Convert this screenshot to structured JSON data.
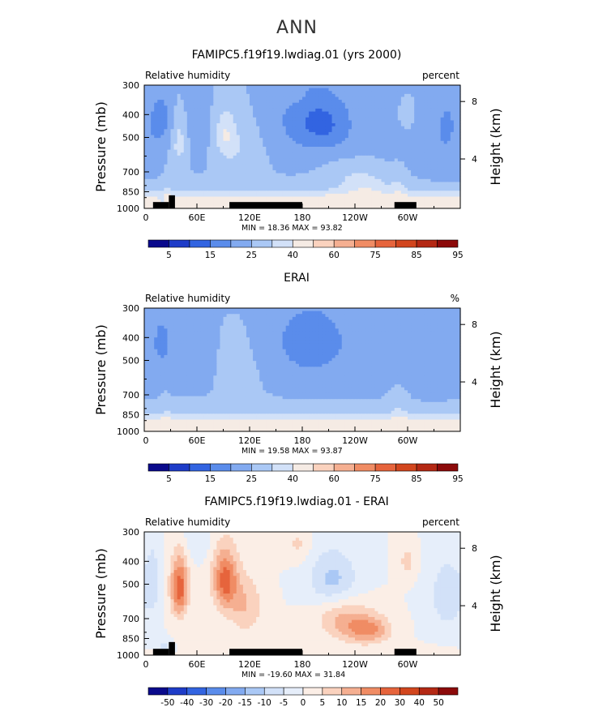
{
  "figure": {
    "title": "ANN",
    "longitude_ticks": [
      "0",
      "60E",
      "120E",
      "180",
      "120W",
      "60W"
    ],
    "pressure_ticks": [
      300,
      400,
      500,
      700,
      850,
      1000
    ],
    "pressure_axis_label": "Pressure (mb)",
    "height_ticks": [
      8,
      4
    ],
    "height_axis_label": "Height (km)"
  },
  "chart_data": [
    {
      "type": "heatmap",
      "title": "FAMIPC5.f19f19.lwdiag.01 (yrs 2000)",
      "left_label": "Relative humidity",
      "unit_label": "percent",
      "xlabel": "",
      "ylabel": "Pressure (mb)",
      "y2label": "Height (km)",
      "x_range": [
        0,
        360
      ],
      "ylim": [
        1000,
        300
      ],
      "min_label": "MIN =",
      "min_value": "18.36",
      "max_label": "MAX =",
      "max_value": "93.82",
      "colorbar_labels": [
        "5",
        "15",
        "25",
        "40",
        "60",
        "75",
        "85",
        "95"
      ],
      "colorbar_colors": [
        "#0a0a8c",
        "#1e3cc8",
        "#3264e1",
        "#5a8ceb",
        "#82aaf0",
        "#aac8f5",
        "#d2e1f8",
        "#f5ebe4",
        "#fad2be",
        "#f5af91",
        "#f08c64",
        "#e6643c",
        "#d2461e",
        "#b42814",
        "#8c0a0a"
      ],
      "field": "model_rh",
      "land": [
        {
          "lon": [
            10,
            28
          ],
          "p": [
            940,
            1000
          ]
        },
        {
          "lon": [
            28,
            35
          ],
          "p": [
            880,
            1000
          ]
        },
        {
          "lon": [
            97,
            180
          ],
          "p": [
            940,
            1000
          ]
        },
        {
          "lon": [
            285,
            310
          ],
          "p": [
            940,
            1000
          ]
        }
      ]
    },
    {
      "type": "heatmap",
      "title": "ERAI",
      "left_label": "Relative humidity",
      "unit_label": "%",
      "xlabel": "",
      "ylabel": "Pressure (mb)",
      "y2label": "Height (km)",
      "x_range": [
        0,
        360
      ],
      "ylim": [
        1000,
        300
      ],
      "min_label": "MIN =",
      "min_value": "19.58",
      "max_label": "MAX =",
      "max_value": "93.87",
      "colorbar_labels": [
        "5",
        "15",
        "25",
        "40",
        "60",
        "75",
        "85",
        "95"
      ],
      "colorbar_colors": [
        "#0a0a8c",
        "#1e3cc8",
        "#3264e1",
        "#5a8ceb",
        "#82aaf0",
        "#aac8f5",
        "#d2e1f8",
        "#f5ebe4",
        "#fad2be",
        "#f5af91",
        "#f08c64",
        "#e6643c",
        "#d2461e",
        "#b42814",
        "#8c0a0a"
      ],
      "field": "obs_rh",
      "land": []
    },
    {
      "type": "heatmap",
      "title": "FAMIPC5.f19f19.lwdiag.01 - ERAI",
      "left_label": "Relative humidity",
      "unit_label": "percent",
      "xlabel": "",
      "ylabel": "Pressure (mb)",
      "y2label": "Height (km)",
      "x_range": [
        0,
        360
      ],
      "ylim": [
        1000,
        300
      ],
      "min_label": "MIN =",
      "min_value": "-19.60",
      "max_label": "MAX =",
      "max_value": "31.84",
      "colorbar_labels": [
        "-50",
        "-40",
        "-30",
        "-20",
        "-15",
        "-10",
        "-5",
        "0",
        "5",
        "10",
        "15",
        "20",
        "30",
        "40",
        "50"
      ],
      "colorbar_colors": [
        "#0a0a8c",
        "#1e3cc8",
        "#3264e1",
        "#5a8ceb",
        "#82aaf0",
        "#aac8f5",
        "#d2e1f8",
        "#e6eefa",
        "#fbeee6",
        "#fad2be",
        "#f5af91",
        "#f08c64",
        "#e6643c",
        "#d2461e",
        "#b42814",
        "#8c0a0a"
      ],
      "field": "diff_rh",
      "land": [
        {
          "lon": [
            10,
            28
          ],
          "p": [
            940,
            1000
          ]
        },
        {
          "lon": [
            28,
            35
          ],
          "p": [
            880,
            1000
          ]
        },
        {
          "lon": [
            97,
            180
          ],
          "p": [
            940,
            1000
          ]
        },
        {
          "lon": [
            285,
            310
          ],
          "p": [
            940,
            1000
          ]
        }
      ]
    }
  ]
}
